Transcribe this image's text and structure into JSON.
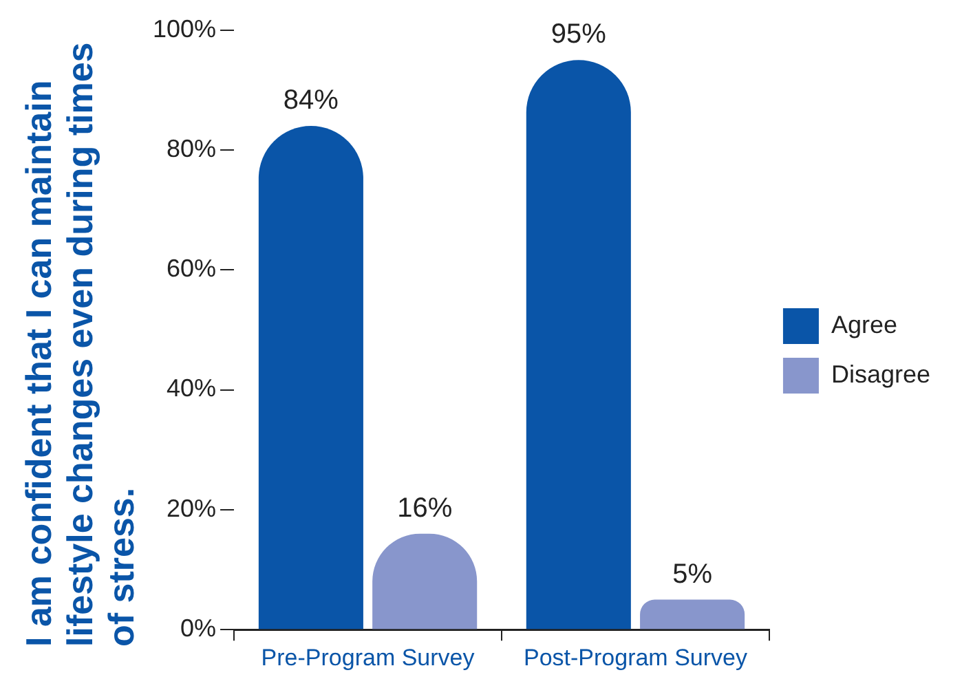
{
  "chart_data": {
    "type": "bar",
    "ylabel": "I am confident that I can maintain lifestyle changes even during times of stress.",
    "categories": [
      "Pre-Program Survey",
      "Post-Program Survey"
    ],
    "series": [
      {
        "name": "Agree",
        "color": "#0a55a8",
        "values": [
          84,
          95
        ],
        "value_labels": [
          "84%",
          "95%"
        ]
      },
      {
        "name": "Disagree",
        "color": "#8896cc",
        "values": [
          16,
          5
        ],
        "value_labels": [
          "16%",
          "5%"
        ]
      }
    ],
    "ylim": [
      0,
      100
    ],
    "yticks": [
      {
        "value": 0,
        "label": "0%"
      },
      {
        "value": 20,
        "label": "20%"
      },
      {
        "value": 40,
        "label": "40%"
      },
      {
        "value": 60,
        "label": "60%"
      },
      {
        "value": 80,
        "label": "80%"
      },
      {
        "value": 100,
        "label": "100%"
      }
    ],
    "grid": false,
    "legend": "right"
  }
}
